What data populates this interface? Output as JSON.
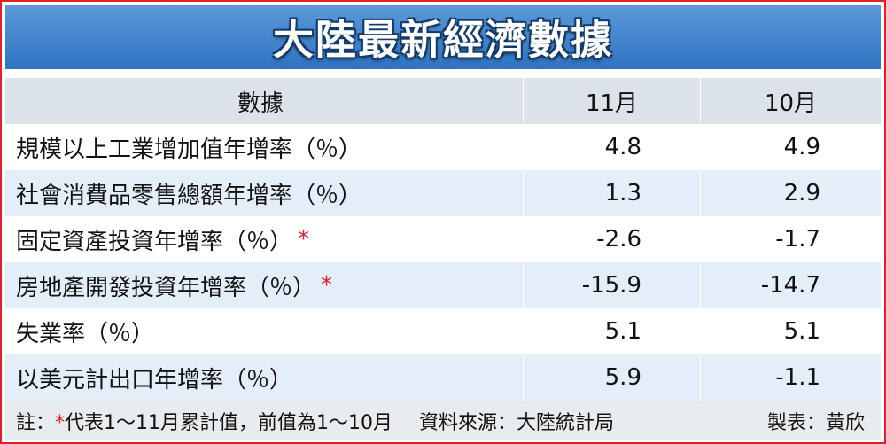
{
  "title": "大陸最新經濟數據",
  "table": {
    "header": [
      "數據",
      "11月",
      "10月"
    ],
    "rows": [
      {
        "label": "規模以上工業增加值年增率（％）",
        "values": [
          4.8,
          4.9
        ]
      },
      {
        "label": "社會消費品零售總額年增率（％）",
        "values": [
          1.3,
          2.9
        ]
      },
      {
        "label": "固定資產投資年增率（％）",
        "mark": "*",
        "values": [
          -2.6,
          -1.7
        ]
      },
      {
        "label": "房地產開發投資年增率（％）",
        "mark": "*",
        "values": [
          -15.9,
          -14.7
        ]
      },
      {
        "label": "失業率（％）",
        "values": [
          5.1,
          5.1
        ]
      },
      {
        "label": "以美元計出口年增率（％）",
        "values": [
          5.9,
          -1.1
        ]
      }
    ]
  },
  "footer": {
    "note": {
      "prefix": "註：",
      "mark": "*",
      "text": "代表1～11月累計值，前值為1～10月"
    },
    "source": "資料來源：大陸統計局",
    "maker": "製表：黃欣"
  }
}
